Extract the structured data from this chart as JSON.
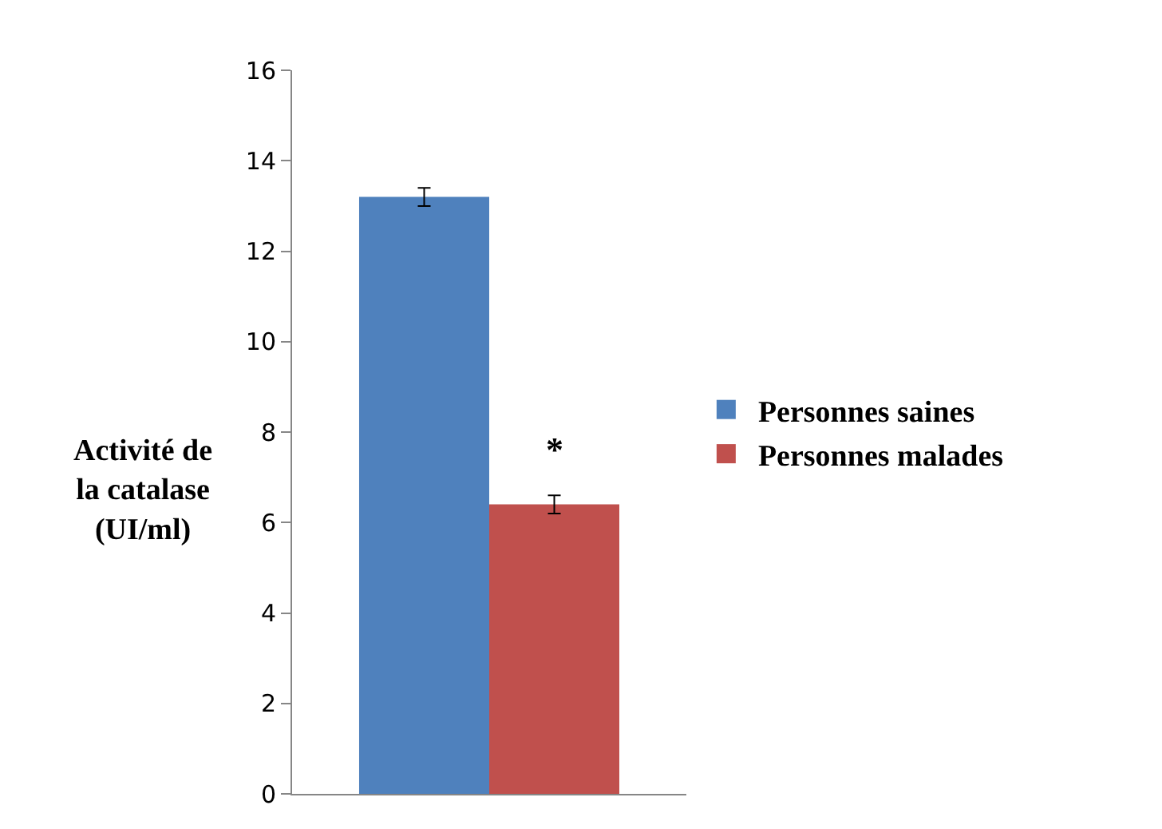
{
  "chart_data": {
    "type": "bar",
    "ylabel": "Activité de\nla catalase\n(UI/ml)",
    "categories": [
      null
    ],
    "series": [
      {
        "name": "Personnes saines",
        "color": "#4f81bd",
        "values": [
          13.2
        ],
        "errors": [
          0.2
        ]
      },
      {
        "name": "Personnes malades",
        "color": "#c0504d",
        "values": [
          6.4
        ],
        "errors": [
          0.2
        ]
      }
    ],
    "annotations": [
      "*"
    ],
    "ylim": [
      0,
      16
    ],
    "yticks": [
      0,
      2,
      4,
      6,
      8,
      10,
      12,
      14,
      16
    ],
    "grid": false,
    "legend": "right"
  }
}
